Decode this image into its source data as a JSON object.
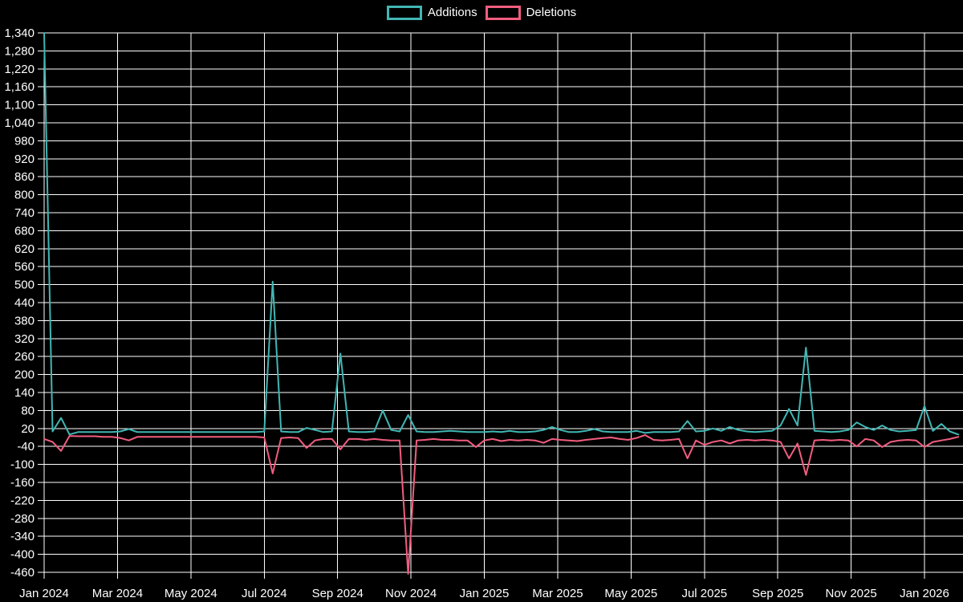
{
  "chart_data": {
    "type": "line",
    "title": "",
    "x_unit": "week",
    "x_tick_labels": [
      "Jan 2024",
      "Mar 2024",
      "May 2024",
      "Jul 2024",
      "Sep 2024",
      "Nov 2024",
      "Jan 2025",
      "Mar 2025",
      "May 2025",
      "Jul 2025",
      "Sep 2025",
      "Nov 2025",
      "Jan 2026"
    ],
    "y_ticks": [
      -460,
      -400,
      -340,
      -280,
      -220,
      -160,
      -100,
      -40,
      20,
      80,
      140,
      200,
      260,
      320,
      380,
      440,
      500,
      560,
      620,
      680,
      740,
      800,
      860,
      920,
      980,
      1040,
      1100,
      1160,
      1220,
      1280,
      1340
    ],
    "ylim": [
      -460,
      1340
    ],
    "y_tick_step": 60,
    "grid": true,
    "legend_position": "top-center",
    "background_color": "#000000",
    "gridline_color": "#ffffff",
    "text_color": "#ffffff",
    "series": [
      {
        "name": "Additions",
        "color": "#40b7b4",
        "values": [
          1340,
          10,
          55,
          0,
          8,
          8,
          8,
          8,
          8,
          10,
          18,
          8,
          8,
          8,
          8,
          8,
          8,
          8,
          8,
          8,
          8,
          8,
          8,
          8,
          8,
          8,
          10,
          510,
          10,
          8,
          8,
          22,
          15,
          8,
          10,
          270,
          10,
          8,
          8,
          10,
          80,
          15,
          10,
          65,
          10,
          8,
          8,
          10,
          12,
          10,
          8,
          8,
          8,
          10,
          8,
          12,
          8,
          8,
          10,
          15,
          25,
          15,
          8,
          8,
          12,
          18,
          10,
          8,
          8,
          8,
          12,
          5,
          8,
          8,
          8,
          10,
          45,
          10,
          12,
          20,
          12,
          25,
          15,
          10,
          8,
          10,
          12,
          30,
          85,
          30,
          290,
          12,
          10,
          8,
          10,
          15,
          40,
          25,
          15,
          30,
          15,
          10,
          12,
          15,
          95,
          12,
          35,
          10,
          0
        ]
      },
      {
        "name": "Deletions",
        "color": "#f25d7f",
        "values": [
          -15,
          -25,
          -55,
          -5,
          -6,
          -6,
          -6,
          -8,
          -8,
          -12,
          -20,
          -8,
          -8,
          -8,
          -8,
          -8,
          -8,
          -8,
          -8,
          -8,
          -8,
          -8,
          -8,
          -8,
          -8,
          -8,
          -10,
          -130,
          -12,
          -10,
          -12,
          -45,
          -20,
          -15,
          -15,
          -50,
          -15,
          -15,
          -18,
          -15,
          -18,
          -20,
          -20,
          -465,
          -20,
          -18,
          -15,
          -18,
          -18,
          -20,
          -20,
          -42,
          -20,
          -15,
          -22,
          -18,
          -20,
          -18,
          -20,
          -28,
          -15,
          -18,
          -20,
          -22,
          -18,
          -15,
          -12,
          -10,
          -15,
          -18,
          -12,
          -2,
          -18,
          -20,
          -18,
          -15,
          -80,
          -20,
          -35,
          -25,
          -20,
          -30,
          -20,
          -18,
          -20,
          -18,
          -20,
          -25,
          -80,
          -30,
          -135,
          -20,
          -18,
          -20,
          -18,
          -20,
          -40,
          -15,
          -20,
          -42,
          -25,
          -20,
          -18,
          -20,
          -42,
          -25,
          -20,
          -15,
          -8
        ]
      }
    ]
  }
}
